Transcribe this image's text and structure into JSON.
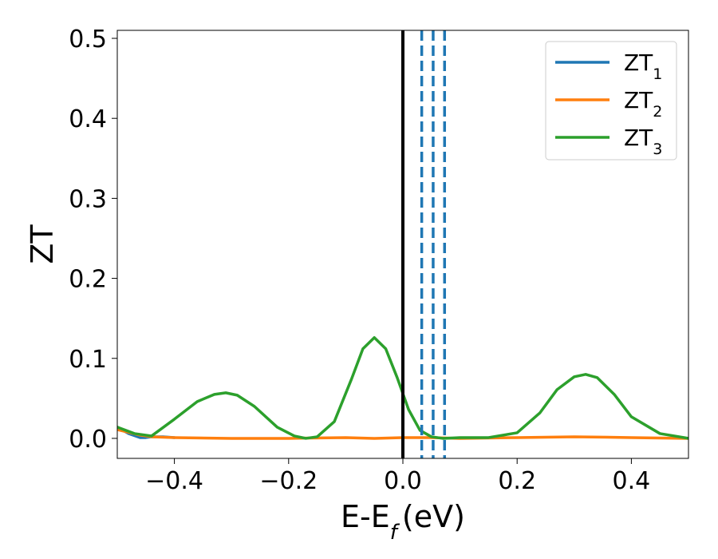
{
  "chart_data": {
    "type": "line",
    "xlabel": "E-E",
    "xlabel_sub": "f",
    "xlabel_unit": "(eV)",
    "ylabel": "ZT",
    "xlim": [
      -0.5,
      0.5
    ],
    "ylim": [
      -0.025,
      0.51
    ],
    "xticks": [
      -0.4,
      -0.2,
      0.0,
      0.2,
      0.4
    ],
    "xtick_labels": [
      "−0.4",
      "−0.2",
      "0.0",
      "0.2",
      "0.4"
    ],
    "yticks": [
      0.0,
      0.1,
      0.2,
      0.3,
      0.4,
      0.5
    ],
    "ytick_labels": [
      "0.0",
      "0.1",
      "0.2",
      "0.3",
      "0.4",
      "0.5"
    ],
    "grid": false,
    "legend_position": "top-right",
    "series": [
      {
        "name": "ZT",
        "subscript": "1",
        "color": "#1f77b4",
        "x": [
          -0.5,
          -0.48,
          -0.46,
          -0.45,
          -0.44,
          -0.42,
          -0.4
        ],
        "y": [
          0.014,
          0.006,
          0.001,
          0.001,
          0.002,
          0.002,
          0.001
        ]
      },
      {
        "name": "ZT",
        "subscript": "2",
        "color": "#ff7f0e",
        "x": [
          -0.5,
          -0.46,
          -0.44,
          -0.4,
          -0.3,
          -0.2,
          -0.1,
          -0.05,
          0.0,
          0.05,
          0.1,
          0.2,
          0.3,
          0.4,
          0.5
        ],
        "y": [
          0.011,
          0.004,
          0.002,
          0.001,
          0.0,
          0.0,
          0.001,
          0.0,
          0.001,
          0.001,
          0.0,
          0.001,
          0.002,
          0.001,
          0.0
        ]
      },
      {
        "name": "ZT",
        "subscript": "3",
        "color": "#2ca02c",
        "x": [
          -0.5,
          -0.47,
          -0.44,
          -0.4,
          -0.36,
          -0.33,
          -0.31,
          -0.29,
          -0.26,
          -0.22,
          -0.19,
          -0.17,
          -0.15,
          -0.12,
          -0.09,
          -0.07,
          -0.05,
          -0.03,
          -0.01,
          0.01,
          0.03,
          0.05,
          0.07,
          0.1,
          0.15,
          0.2,
          0.24,
          0.27,
          0.3,
          0.32,
          0.34,
          0.37,
          0.4,
          0.45,
          0.5
        ],
        "y": [
          0.014,
          0.006,
          0.003,
          0.024,
          0.046,
          0.055,
          0.057,
          0.054,
          0.04,
          0.014,
          0.003,
          0.0,
          0.002,
          0.021,
          0.074,
          0.112,
          0.126,
          0.112,
          0.076,
          0.036,
          0.01,
          0.002,
          0.0,
          0.001,
          0.001,
          0.007,
          0.032,
          0.061,
          0.077,
          0.08,
          0.076,
          0.055,
          0.027,
          0.006,
          0.0
        ]
      }
    ],
    "vlines": [
      {
        "x": 0.0,
        "style": "solid",
        "color": "#000000"
      },
      {
        "x": 0.033,
        "style": "dashed",
        "color": "#1f77b4"
      },
      {
        "x": 0.053,
        "style": "dashed",
        "color": "#1f77b4"
      },
      {
        "x": 0.073,
        "style": "dashed",
        "color": "#1f77b4"
      }
    ]
  }
}
